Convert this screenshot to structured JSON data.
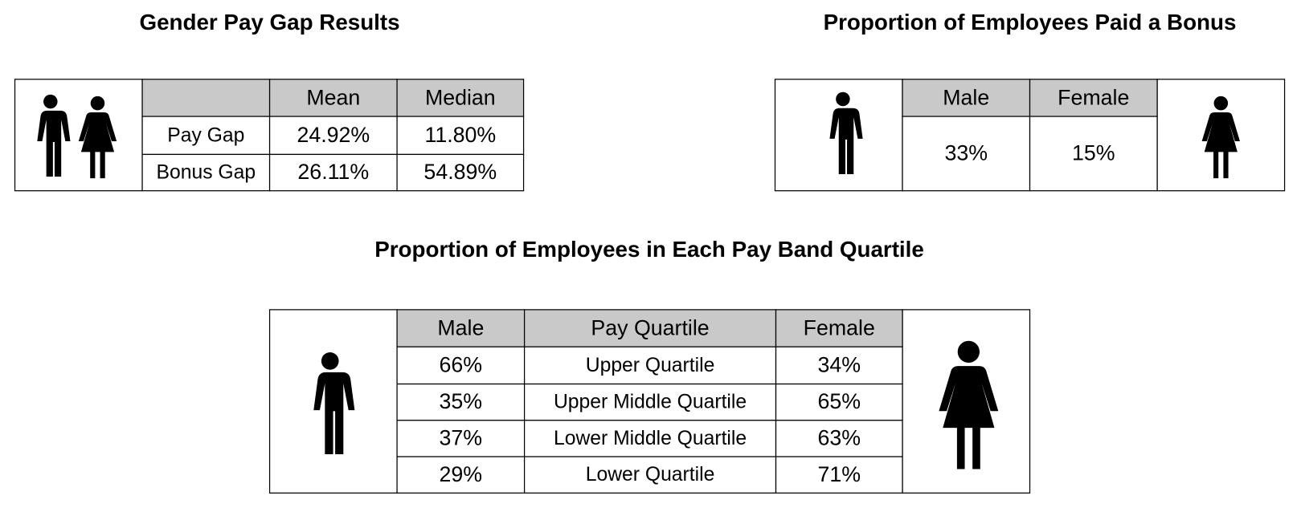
{
  "pay_gap": {
    "title": "Gender Pay Gap Results",
    "columns": [
      "Mean",
      "Median"
    ],
    "rows": [
      {
        "label": "Pay Gap",
        "values": [
          "24.92%",
          "11.80%"
        ]
      },
      {
        "label": "Bonus Gap",
        "values": [
          "26.11%",
          "54.89%"
        ]
      }
    ]
  },
  "bonus": {
    "title": "Proportion of Employees Paid a Bonus",
    "columns": [
      "Male",
      "Female"
    ],
    "values": [
      "33%",
      "15%"
    ]
  },
  "quartiles": {
    "title": "Proportion of Employees in Each Pay Band Quartile",
    "columns": [
      "Male",
      "Pay Quartile",
      "Female"
    ],
    "rows": [
      [
        "66%",
        "Upper Quartile",
        "34%"
      ],
      [
        "35%",
        "Upper Middle Quartile",
        "65%"
      ],
      [
        "37%",
        "Lower Middle Quartile",
        "63%"
      ],
      [
        "29%",
        "Lower Quartile",
        "71%"
      ]
    ]
  }
}
